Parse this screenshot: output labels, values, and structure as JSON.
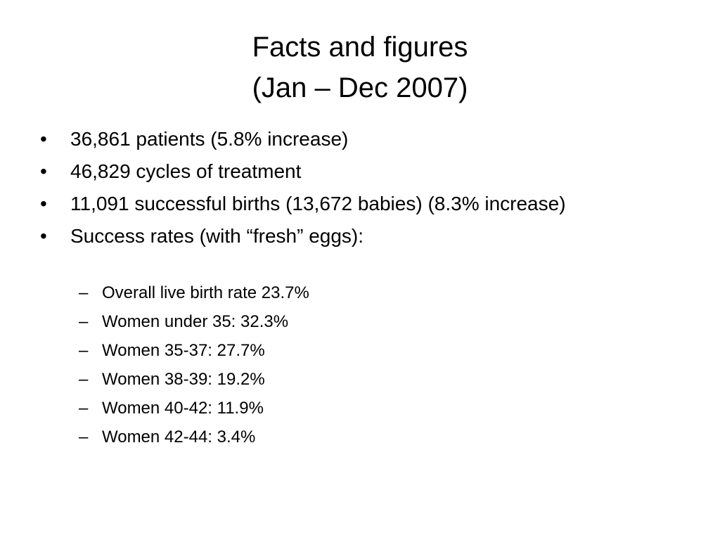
{
  "slide": {
    "title_line1": "Facts and figures",
    "title_line2": "(Jan – Dec 2007)",
    "bullets": [
      "36,861 patients (5.8% increase)",
      "46,829 cycles of treatment",
      "11,091 successful births (13,672 babies) (8.3% increase)",
      "Success rates (with “fresh” eggs):"
    ],
    "sub_bullets": [
      "Overall live birth rate 23.7%",
      "Women under 35: 32.3%",
      "Women 35-37: 27.7%",
      "Women 38-39: 19.2%",
      "Women 40-42: 11.9%",
      "Women 42-44: 3.4%"
    ],
    "bullet_marker": "•",
    "sub_marker": "–"
  }
}
